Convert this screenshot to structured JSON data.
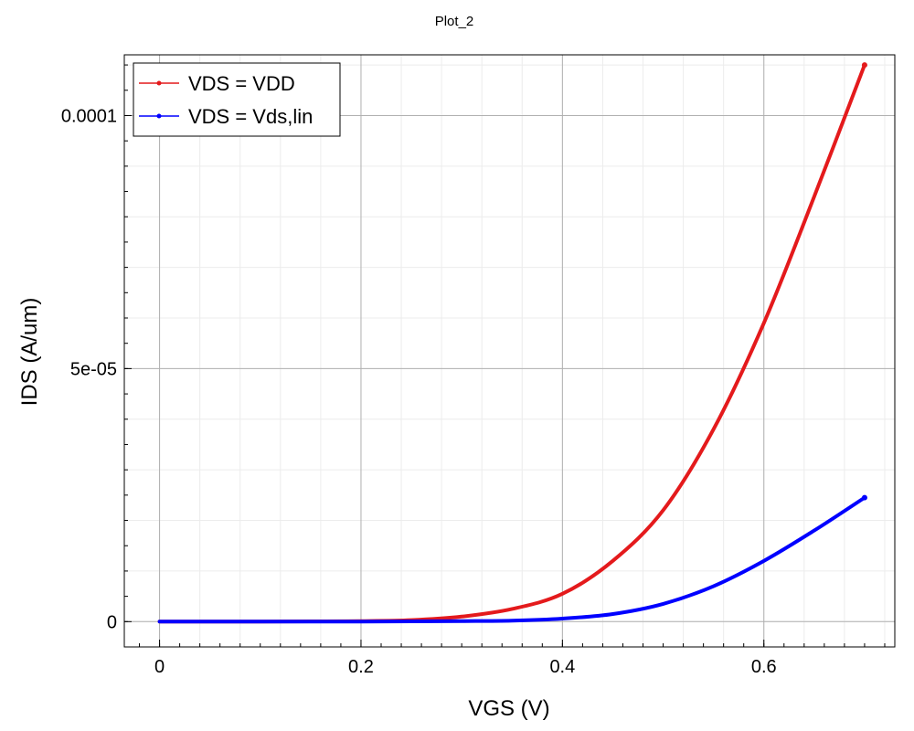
{
  "chart_data": {
    "type": "line",
    "title": "Plot_2",
    "xlabel": "VGS (V)",
    "ylabel": "IDS (A/um)",
    "xlim": [
      -0.035,
      0.73
    ],
    "ylim": [
      -5e-06,
      0.000112
    ],
    "x_ticks": [
      0,
      0.2,
      0.4,
      0.6
    ],
    "x_tick_labels": [
      "0",
      "0.2",
      "0.4",
      "0.6"
    ],
    "y_ticks": [
      0,
      5e-05,
      0.0001
    ],
    "y_tick_labels": [
      "0",
      "5e-05",
      "0.0001"
    ],
    "grid": true,
    "legend": "top-left",
    "series": [
      {
        "name": "VDS = VDD",
        "color": "#e41a1c",
        "x": [
          0,
          0.05,
          0.1,
          0.15,
          0.2,
          0.25,
          0.3,
          0.35,
          0.4,
          0.45,
          0.5,
          0.55,
          0.6,
          0.65,
          0.7
        ],
        "y": [
          0,
          0,
          2e-08,
          5e-08,
          1e-07,
          3e-07,
          1e-06,
          2.5e-06,
          5.5e-06,
          1.2e-05,
          2.2e-05,
          3.8e-05,
          5.9e-05,
          8.4e-05,
          0.00011
        ]
      },
      {
        "name": "VDS = Vds,lin",
        "color": "#0000ff",
        "x": [
          0,
          0.05,
          0.1,
          0.15,
          0.2,
          0.25,
          0.3,
          0.35,
          0.4,
          0.45,
          0.5,
          0.55,
          0.6,
          0.65,
          0.7
        ],
        "y": [
          0,
          0,
          0,
          0,
          2e-08,
          5e-08,
          1e-07,
          2e-07,
          6e-07,
          1.5e-06,
          3.5e-06,
          7e-06,
          1.2e-05,
          1.8e-05,
          2.45e-05
        ]
      }
    ]
  }
}
